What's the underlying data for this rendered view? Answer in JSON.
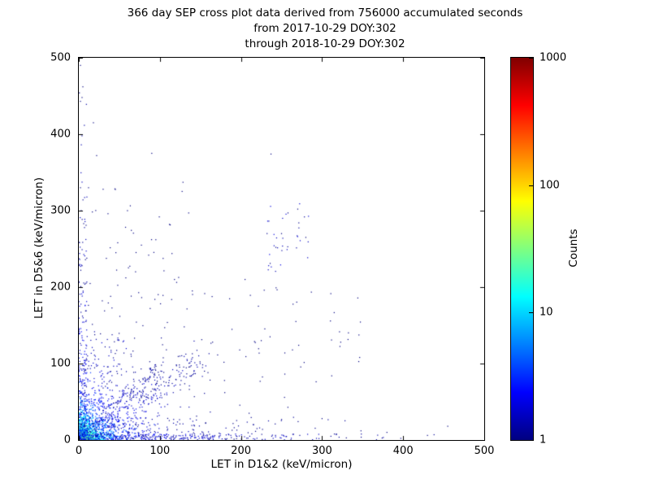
{
  "title": {
    "line1": "366 day SEP cross plot data derived from 756000 accumulated seconds",
    "line2": "from 2017-10-29 DOY:302",
    "line3": "through 2018-10-29 DOY:302"
  },
  "chart_data": {
    "type": "scatter",
    "xlabel": "LET in D1&2 (keV/micron)",
    "ylabel": "LET in D5&6 (keV/micron)",
    "xlim": [
      0,
      500
    ],
    "ylim": [
      0,
      500
    ],
    "xticks": [
      "0",
      "100",
      "200",
      "300",
      "400",
      "500"
    ],
    "yticks": [
      "0",
      "100",
      "200",
      "300",
      "400",
      "500"
    ],
    "grid": false,
    "colorbar": {
      "label": "Counts",
      "scale": "log",
      "ticks": [
        "1",
        "10",
        "100",
        "1000"
      ],
      "tick_values": [
        1,
        10,
        100,
        1000
      ],
      "range": [
        1,
        1000
      ],
      "colormap": "jet",
      "position": "right"
    },
    "point_color_count1": "#000080",
    "note": "Dense point cloud approximated by density regions; color encodes log10(count) on jet colormap",
    "seed": 7,
    "regions": [
      {
        "type": "exp_cluster",
        "cx": 0,
        "cy": 0,
        "sx": 3,
        "sy": 3,
        "n": 1600,
        "cmin": 40,
        "cmax": 500
      },
      {
        "type": "exp_cluster",
        "cx": 0,
        "cy": 0,
        "sx": 12,
        "sy": 12,
        "n": 1000,
        "cmin": 3,
        "cmax": 60
      },
      {
        "type": "exp_cluster",
        "cx": 0,
        "cy": 0,
        "sx": 35,
        "sy": 30,
        "n": 600,
        "cmin": 1,
        "cmax": 8
      },
      {
        "type": "band",
        "x0": 0,
        "y0": 0,
        "x1": 150,
        "y1": 105,
        "spread": 11,
        "n": 260,
        "cmin": 1,
        "cmax": 5
      },
      {
        "type": "band",
        "x0": 0,
        "y0": 0,
        "x1": 95,
        "y1": 95,
        "spread": 5,
        "n": 130,
        "cmin": 1,
        "cmax": 4
      },
      {
        "type": "decay_y",
        "scale": 140,
        "ymax": 500,
        "x0": 0,
        "x1": 10,
        "n": 210,
        "cmin": 1,
        "cmax": 4
      },
      {
        "type": "decay_x",
        "scale": 130,
        "xmax": 460,
        "y0": 0,
        "y1": 8,
        "n": 280,
        "cmin": 1,
        "cmax": 4
      },
      {
        "type": "decay_x",
        "scale": 110,
        "xmax": 330,
        "y0": 0,
        "y1": 30,
        "n": 180,
        "cmin": 1,
        "cmax": 2
      },
      {
        "type": "uniform",
        "x0": 228,
        "x1": 285,
        "y0": 215,
        "y1": 310,
        "n": 32,
        "cmin": 1,
        "cmax": 2
      },
      {
        "type": "uniform",
        "x0": 5,
        "x1": 140,
        "y0": 60,
        "y1": 340,
        "n": 80,
        "cmin": 1,
        "cmax": 1
      },
      {
        "type": "uniform",
        "x0": 140,
        "x1": 360,
        "y0": 5,
        "y1": 200,
        "n": 60,
        "cmin": 1,
        "cmax": 1
      },
      {
        "type": "uniform",
        "x0": 0,
        "x1": 60,
        "y0": 60,
        "y1": 140,
        "n": 60,
        "cmin": 1,
        "cmax": 2
      }
    ],
    "isolated_points": [
      [
        237,
        374
      ],
      [
        22,
        372
      ],
      [
        30,
        328
      ],
      [
        12,
        330
      ],
      [
        60,
        300
      ],
      [
        95,
        262
      ],
      [
        118,
        210
      ],
      [
        140,
        195
      ],
      [
        165,
        128
      ],
      [
        205,
        210
      ],
      [
        323,
        128
      ],
      [
        258,
        297
      ],
      [
        250,
        270
      ],
      [
        243,
        252
      ],
      [
        236,
        231
      ],
      [
        270,
        302
      ],
      [
        280,
        265
      ],
      [
        455,
        18
      ],
      [
        430,
        6
      ],
      [
        380,
        10
      ],
      [
        348,
        12
      ],
      [
        300,
        28
      ],
      [
        225,
        130
      ],
      [
        180,
        62
      ],
      [
        210,
        35
      ],
      [
        155,
        90
      ],
      [
        130,
        148
      ],
      [
        108,
        118
      ],
      [
        88,
        172
      ],
      [
        70,
        220
      ],
      [
        48,
        258
      ],
      [
        36,
        296
      ],
      [
        18,
        415
      ],
      [
        2,
        443
      ],
      [
        4,
        448
      ],
      [
        2,
        490
      ],
      [
        5,
        462
      ],
      [
        90,
        375
      ],
      [
        2,
        330
      ],
      [
        3,
        300
      ],
      [
        6,
        283
      ],
      [
        4,
        228
      ]
    ]
  }
}
